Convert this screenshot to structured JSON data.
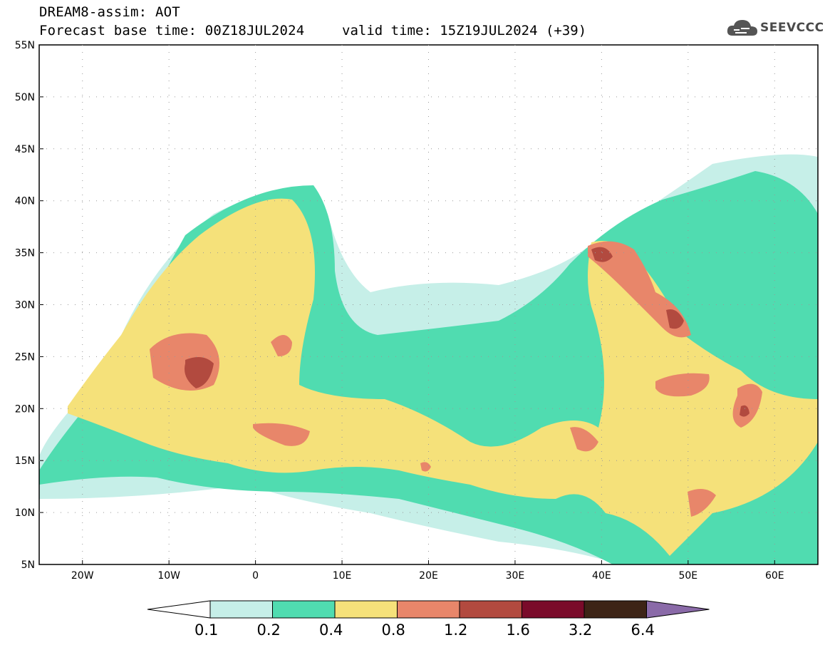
{
  "header": {
    "title": "DREAM8-assim: AOT",
    "base_time": "Forecast base time: 00Z18JUL2024",
    "valid_time": "valid time: 15Z19JUL2024 (+39)",
    "logo_text": "SEEVCCC"
  },
  "map": {
    "lat_labels": [
      "55N",
      "50N",
      "45N",
      "40N",
      "35N",
      "30N",
      "25N",
      "20N",
      "15N",
      "10N",
      "5N"
    ],
    "lon_labels": [
      "20W",
      "10W",
      "0",
      "10E",
      "20E",
      "30E",
      "40E",
      "50E",
      "60E"
    ],
    "lat_range": [
      5,
      55
    ],
    "lon_range": [
      -25,
      65
    ]
  },
  "legend": {
    "levels": [
      "0.1",
      "0.2",
      "0.4",
      "0.8",
      "1.2",
      "1.6",
      "3.2",
      "6.4"
    ],
    "colors": [
      "#ffffff",
      "#c6efe8",
      "#50dcb0",
      "#f5e17a",
      "#e8866a",
      "#b24a3f",
      "#7a0b2a",
      "#3d2416",
      "#8a6aa8"
    ]
  }
}
